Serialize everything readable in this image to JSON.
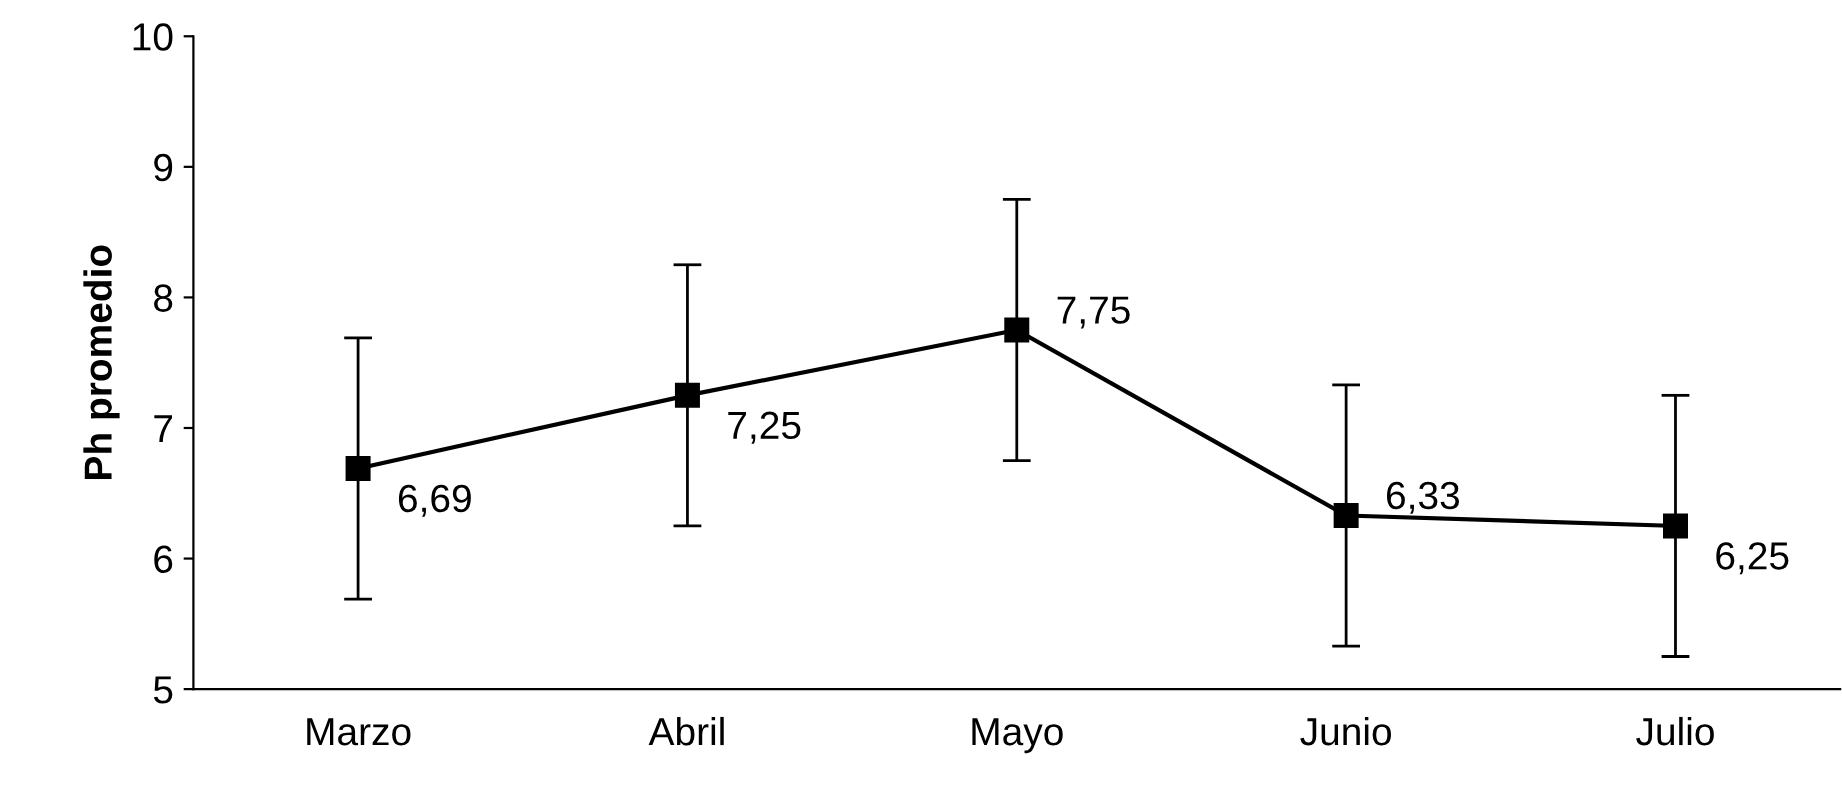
{
  "chart_data": {
    "type": "line",
    "ylabel": "Ph promedio",
    "categories": [
      "Marzo",
      "Abril",
      "Mayo",
      "Junio",
      "Julio"
    ],
    "values": [
      6.69,
      7.25,
      7.75,
      6.33,
      6.25
    ],
    "errors": [
      1,
      1,
      1,
      1,
      1
    ],
    "value_labels": [
      "6,69",
      "7,25",
      "7,75",
      "6,33",
      "6,25"
    ],
    "color": "#000000",
    "marker": "square",
    "line_style": "solid",
    "ylim": [
      5,
      10
    ],
    "yticks": [
      5,
      6,
      7,
      8,
      9,
      10
    ],
    "grid": false,
    "legend": false
  }
}
